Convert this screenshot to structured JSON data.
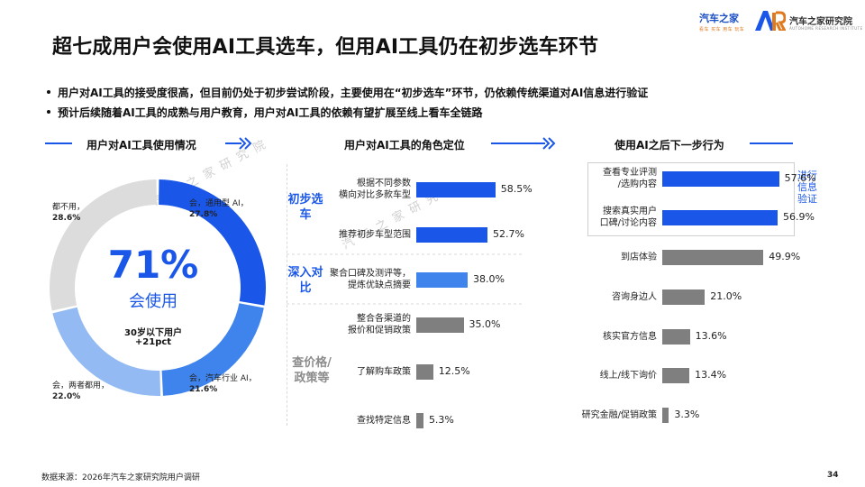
{
  "header": {
    "title": "超七成用户会使用AI工具选车，但用AI工具仍在初步选车环节",
    "logo_autohome": "汽车之家",
    "logo_autohome_tagline": "看车 买车 用车 玩车",
    "logo_institute": "汽车之家研究院",
    "logo_institute_sub": "AUTOHOME RESEARCH INSTITUTE"
  },
  "bullets": [
    "用户对AI工具的接受度很高，但目前仍处于初步尝试阶段，主要使用在“初步选车”环节，仍依赖传统渠道对AI信息进行验证",
    "预计后续随着AI工具的成熟与用户教育，用户对AI工具的依赖有望扩展至线上看车全链路"
  ],
  "sections": {
    "left": "用户对AI工具使用情况",
    "middle": "用户对AI工具的角色定位",
    "right": "使用AI之后下一步行为"
  },
  "watermark": "汽车之家研究院",
  "colors": {
    "blue_main": "#1a57e8",
    "blue_mid": "#3f84ec",
    "blue_light": "#93baf2",
    "grey_light": "#dcdcdc",
    "grey_bar": "#7f7f7f"
  },
  "chart_data": [
    {
      "type": "pie",
      "name": "donut",
      "center_big": "71%",
      "center_sub": "会使用",
      "note_line1": "30岁以下用户",
      "note_line2": "+21pct",
      "slices": [
        {
          "label": "会，通用型 AI，",
          "value_text": "27.8%",
          "value": 27.8,
          "color": "#1a57e8"
        },
        {
          "label": "会，汽车行业 AI，",
          "value_text": "21.6%",
          "value": 21.6,
          "color": "#3f84ec"
        },
        {
          "label": "会，两者都用，",
          "value_text": "22.0%",
          "value": 22.0,
          "color": "#93baf2"
        },
        {
          "label": "都不用，",
          "value_text": "28.6%",
          "value": 28.6,
          "color": "#dcdcdc"
        }
      ]
    },
    {
      "type": "bar",
      "name": "role",
      "groups": [
        "初步选车",
        "深入对比",
        "查价格/政策等"
      ],
      "categories": [
        [
          "根据不同参数",
          "横向对比多款车型"
        ],
        [
          "推荐初步车型范围"
        ],
        [
          "聚合口碑及测评等，",
          "提炼优缺点摘要"
        ],
        [
          "整合各渠道的",
          "报价和促销政策"
        ],
        [
          "了解购车政策"
        ],
        [
          "查找特定信息"
        ]
      ],
      "values": [
        58.5,
        52.7,
        38.0,
        35.0,
        12.5,
        5.3
      ],
      "value_labels": [
        "58.5%",
        "52.7%",
        "38.0%",
        "35.0%",
        "12.5%",
        "5.3%"
      ],
      "xlim": [
        0,
        100
      ]
    },
    {
      "type": "bar",
      "name": "next",
      "callout": "进行信息验证",
      "categories": [
        [
          "查看专业评测",
          "/选购内容"
        ],
        [
          "搜索真实用户",
          "口碑/讨论内容"
        ],
        [
          "到店体验"
        ],
        [
          "咨询身边人"
        ],
        [
          "核实官方信息"
        ],
        [
          "线上/线下询价"
        ],
        [
          "研究金融/促销政策"
        ]
      ],
      "values": [
        57.6,
        56.9,
        49.9,
        21.0,
        13.6,
        13.4,
        3.3
      ],
      "value_labels": [
        "57.6%",
        "56.9%",
        "49.9%",
        "21.0%",
        "13.6%",
        "13.4%",
        "3.3%"
      ],
      "xlim": [
        0,
        100
      ]
    }
  ],
  "footer": {
    "source": "数据来源：2026年汽车之家研究院用户调研",
    "page": "34"
  }
}
